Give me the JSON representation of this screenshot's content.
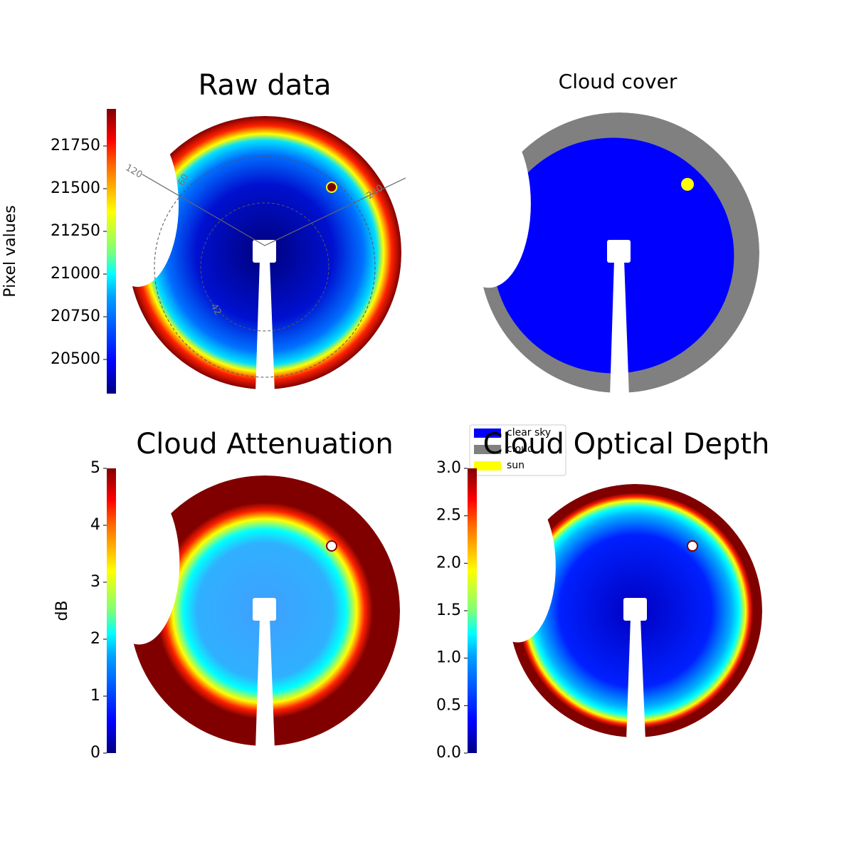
{
  "chart_data": [
    {
      "type": "image",
      "title": "Raw data",
      "colorbar_label": "Pixel values",
      "clim": [
        20300,
        21967
      ],
      "ticks": [
        20500,
        20750,
        21000,
        21250,
        21500,
        21750
      ],
      "polar_labels": [
        "120",
        "60",
        "240",
        "42"
      ]
    },
    {
      "type": "image",
      "title": "Cloud cover",
      "legend": [
        {
          "name": "clear sky",
          "color": "#0000ff"
        },
        {
          "name": "cloud",
          "color": "#808080"
        },
        {
          "name": "sun",
          "color": "#ffff00"
        }
      ]
    },
    {
      "type": "image",
      "title": "Cloud Attenuation",
      "colorbar_label": "dB",
      "clim": [
        0,
        5
      ],
      "ticks": [
        0,
        1,
        2,
        3,
        4,
        5
      ]
    },
    {
      "type": "image",
      "title": "Cloud Optical Depth",
      "clim": [
        0,
        3
      ],
      "ticks": [
        {
          "value": 0,
          "label": "0.0"
        },
        0.5,
        {
          "value": 1,
          "label": "1.0"
        },
        1.5,
        {
          "value": 2,
          "label": "2.0"
        },
        2.5,
        {
          "value": 3,
          "label": "3.0"
        }
      ]
    }
  ]
}
